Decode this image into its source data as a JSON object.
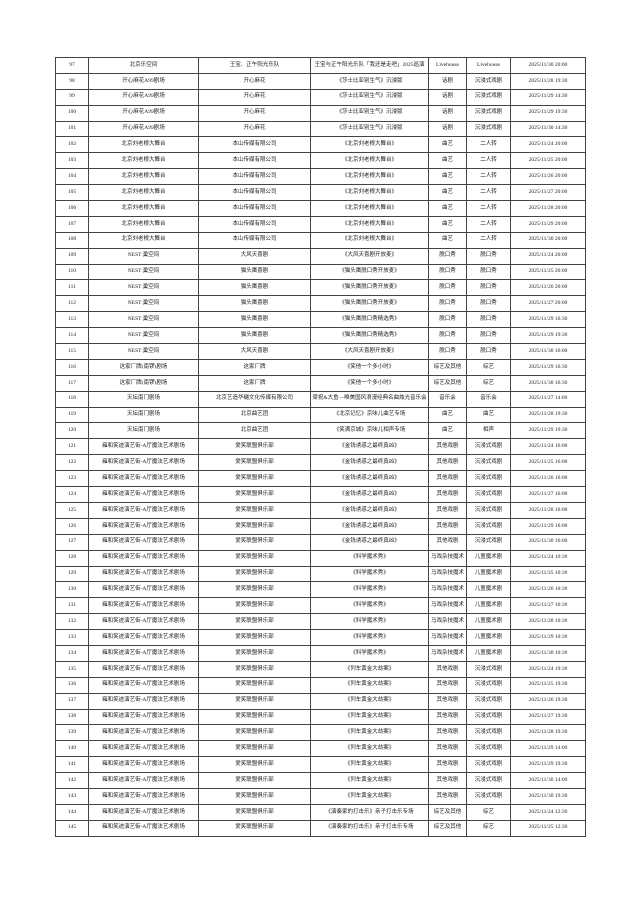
{
  "page": {
    "background_color": "#ffffff",
    "border_color": "#444444",
    "text_color": "#1a1a1a"
  },
  "table": {
    "rows": [
      [
        "97",
        "北京乐空间",
        "王宝、正午阳光乐队",
        "王宝与正午阳光乐队「我还是走吧」2025巡演",
        "Livehouse",
        "Livehouse",
        "2025/11/30 20:00"
      ],
      [
        "98",
        "开心麻花A99剧场",
        "开心麻花",
        "《莎士比亚别生气》沉浸版",
        "话剧",
        "沉浸式戏剧",
        "2025/11/28 19:30"
      ],
      [
        "99",
        "开心麻花A99剧场",
        "开心麻花",
        "《莎士比亚别生气》沉浸版",
        "话剧",
        "沉浸式戏剧",
        "2025/11/29 14:30"
      ],
      [
        "100",
        "开心麻花A99剧场",
        "开心麻花",
        "《莎士比亚别生气》沉浸版",
        "话剧",
        "沉浸式戏剧",
        "2025/11/29 19:30"
      ],
      [
        "101",
        "开心麻花A99剧场",
        "开心麻花",
        "《莎士比亚别生气》沉浸版",
        "话剧",
        "沉浸式戏剧",
        "2025/11/30 14:30"
      ],
      [
        "102",
        "北京刘老根大舞台",
        "本山传媒有限公司",
        "《北京刘老根大舞台》",
        "曲艺",
        "二人转",
        "2025/11/24 20:00"
      ],
      [
        "103",
        "北京刘老根大舞台",
        "本山传媒有限公司",
        "《北京刘老根大舞台》",
        "曲艺",
        "二人转",
        "2025/11/25 20:00"
      ],
      [
        "104",
        "北京刘老根大舞台",
        "本山传媒有限公司",
        "《北京刘老根大舞台》",
        "曲艺",
        "二人转",
        "2025/11/26 20:00"
      ],
      [
        "105",
        "北京刘老根大舞台",
        "本山传媒有限公司",
        "《北京刘老根大舞台》",
        "曲艺",
        "二人转",
        "2025/11/27 20:00"
      ],
      [
        "106",
        "北京刘老根大舞台",
        "本山传媒有限公司",
        "《北京刘老根大舞台》",
        "曲艺",
        "二人转",
        "2025/11/28 20:00"
      ],
      [
        "107",
        "北京刘老根大舞台",
        "本山传媒有限公司",
        "《北京刘老根大舞台》",
        "曲艺",
        "二人转",
        "2025/11/29 20:00"
      ],
      [
        "108",
        "北京刘老根大舞台",
        "本山传媒有限公司",
        "《北京刘老根大舞台》",
        "曲艺",
        "二人转",
        "2025/11/30 20:00"
      ],
      [
        "109",
        "NEST 巢空间",
        "大风天喜剧",
        "《大风天喜剧开放麦》",
        "脱口秀",
        "脱口秀",
        "2025/11/24 20:00"
      ],
      [
        "110",
        "NEST 巢空间",
        "猫头鹰喜剧",
        "《猫头鹰脱口秀开放麦》",
        "脱口秀",
        "脱口秀",
        "2025/11/25 20:00"
      ],
      [
        "111",
        "NEST 巢空间",
        "猫头鹰喜剧",
        "《猫头鹰脱口秀开放麦》",
        "脱口秀",
        "脱口秀",
        "2025/11/26 20:00"
      ],
      [
        "112",
        "NEST 巢空间",
        "猫头鹰喜剧",
        "《猫头鹰脱口秀开放麦》",
        "脱口秀",
        "脱口秀",
        "2025/11/27 20:00"
      ],
      [
        "113",
        "NEST 巢空间",
        "猫头鹰喜剧",
        "《猫头鹰脱口秀精选秀》",
        "脱口秀",
        "脱口秀",
        "2025/11/29 16:30"
      ],
      [
        "114",
        "NEST 巢空间",
        "猫头鹰喜剧",
        "《猫头鹰脱口秀精选秀》",
        "脱口秀",
        "脱口秀",
        "2025/11/29 19:30"
      ],
      [
        "115",
        "NEST 巢空间",
        "大风天喜剧",
        "《大风天喜剧开放麦》",
        "脱口秀",
        "脱口秀",
        "2025/11/30 16:00"
      ],
      [
        "116",
        "这家厂牌(南锣)剧场",
        "这家厂牌",
        "《笑他一个多小时》",
        "综艺及其他",
        "综艺",
        "2025/11/29 16:30"
      ],
      [
        "117",
        "这家厂牌(南锣)剧场",
        "这家厂牌",
        "《笑他一个多小时》",
        "综艺及其他",
        "综艺",
        "2025/11/30 16:30"
      ],
      [
        "118",
        "天坛南门剧场",
        "北京艺造华樾文化传媒有限公司",
        "梁祝&大鱼—唯美国风浪漫经典名曲烛光音乐会",
        "音乐会",
        "音乐会",
        "2025/11/27 14:00"
      ],
      [
        "119",
        "天坛南门剧场",
        "北京曲艺团",
        "《北京记忆》京味儿曲艺专场",
        "曲艺",
        "曲艺",
        "2025/11/28 19:30"
      ],
      [
        "120",
        "天坛南门剧场",
        "北京曲艺团",
        "《笑满京城》京味儿相声专场",
        "曲艺",
        "相声",
        "2025/11/29 19:30"
      ],
      [
        "121",
        "雍和笑迹演艺街-A厅魔法艺术剧场",
        "爱笑联盟俱乐部",
        "《金钱诱惑之最终真凶》",
        "其他戏剧",
        "沉浸式戏剧",
        "2025/11/24 16:00"
      ],
      [
        "122",
        "雍和笑迹演艺街-A厅魔法艺术剧场",
        "爱笑联盟俱乐部",
        "《金钱诱惑之最终真凶》",
        "其他戏剧",
        "沉浸式戏剧",
        "2025/11/25 16:00"
      ],
      [
        "123",
        "雍和笑迹演艺街-A厅魔法艺术剧场",
        "爱笑联盟俱乐部",
        "《金钱诱惑之最终真凶》",
        "其他戏剧",
        "沉浸式戏剧",
        "2025/11/26 16:00"
      ],
      [
        "124",
        "雍和笑迹演艺街-A厅魔法艺术剧场",
        "爱笑联盟俱乐部",
        "《金钱诱惑之最终真凶》",
        "其他戏剧",
        "沉浸式戏剧",
        "2025/11/27 16:00"
      ],
      [
        "125",
        "雍和笑迹演艺街-A厅魔法艺术剧场",
        "爱笑联盟俱乐部",
        "《金钱诱惑之最终真凶》",
        "其他戏剧",
        "沉浸式戏剧",
        "2025/11/28 16:00"
      ],
      [
        "126",
        "雍和笑迹演艺街-A厅魔法艺术剧场",
        "爱笑联盟俱乐部",
        "《金钱诱惑之最终真凶》",
        "其他戏剧",
        "沉浸式戏剧",
        "2025/11/29 16:00"
      ],
      [
        "127",
        "雍和笑迹演艺街-A厅魔法艺术剧场",
        "爱笑联盟俱乐部",
        "《金钱诱惑之最终真凶》",
        "其他戏剧",
        "沉浸式戏剧",
        "2025/11/30 16:00"
      ],
      [
        "128",
        "雍和笑迹演艺街-A厅魔法艺术剧场",
        "爱笑联盟俱乐部",
        "《科学魔术秀》",
        "马戏杂技魔术",
        "儿童魔术剧",
        "2025/11/24 10:30"
      ],
      [
        "129",
        "雍和笑迹演艺街-A厅魔法艺术剧场",
        "爱笑联盟俱乐部",
        "《科学魔术秀》",
        "马戏杂技魔术",
        "儿童魔术剧",
        "2025/11/25 10:30"
      ],
      [
        "130",
        "雍和笑迹演艺街-A厅魔法艺术剧场",
        "爱笑联盟俱乐部",
        "《科学魔术秀》",
        "马戏杂技魔术",
        "儿童魔术剧",
        "2025/11/26 10:30"
      ],
      [
        "131",
        "雍和笑迹演艺街-A厅魔法艺术剧场",
        "爱笑联盟俱乐部",
        "《科学魔术秀》",
        "马戏杂技魔术",
        "儿童魔术剧",
        "2025/11/27 10:30"
      ],
      [
        "132",
        "雍和笑迹演艺街-A厅魔法艺术剧场",
        "爱笑联盟俱乐部",
        "《科学魔术秀》",
        "马戏杂技魔术",
        "儿童魔术剧",
        "2025/11/28 10:30"
      ],
      [
        "133",
        "雍和笑迹演艺街-A厅魔法艺术剧场",
        "爱笑联盟俱乐部",
        "《科学魔术秀》",
        "马戏杂技魔术",
        "儿童魔术剧",
        "2025/11/29 10:30"
      ],
      [
        "134",
        "雍和笑迹演艺街-A厅魔法艺术剧场",
        "爱笑联盟俱乐部",
        "《科学魔术秀》",
        "马戏杂技魔术",
        "儿童魔术剧",
        "2025/11/30 10:30"
      ],
      [
        "135",
        "雍和笑迹演艺街-A厅魔法艺术剧场",
        "爱笑联盟俱乐部",
        "《列车黄金大劫案》",
        "其他戏剧",
        "沉浸式戏剧",
        "2025/11/24 19:30"
      ],
      [
        "136",
        "雍和笑迹演艺街-A厅魔法艺术剧场",
        "爱笑联盟俱乐部",
        "《列车黄金大劫案》",
        "其他戏剧",
        "沉浸式戏剧",
        "2025/11/25 19:30"
      ],
      [
        "137",
        "雍和笑迹演艺街-A厅魔法艺术剧场",
        "爱笑联盟俱乐部",
        "《列车黄金大劫案》",
        "其他戏剧",
        "沉浸式戏剧",
        "2025/11/26 19:30"
      ],
      [
        "138",
        "雍和笑迹演艺街-A厅魔法艺术剧场",
        "爱笑联盟俱乐部",
        "《列车黄金大劫案》",
        "其他戏剧",
        "沉浸式戏剧",
        "2025/11/27 19:30"
      ],
      [
        "139",
        "雍和笑迹演艺街-A厅魔法艺术剧场",
        "爱笑联盟俱乐部",
        "《列车黄金大劫案》",
        "其他戏剧",
        "沉浸式戏剧",
        "2025/11/28 19:30"
      ],
      [
        "140",
        "雍和笑迹演艺街-A厅魔法艺术剧场",
        "爱笑联盟俱乐部",
        "《列车黄金大劫案》",
        "其他戏剧",
        "沉浸式戏剧",
        "2025/11/29 14:00"
      ],
      [
        "141",
        "雍和笑迹演艺街-A厅魔法艺术剧场",
        "爱笑联盟俱乐部",
        "《列车黄金大劫案》",
        "其他戏剧",
        "沉浸式戏剧",
        "2025/11/29 19:30"
      ],
      [
        "142",
        "雍和笑迹演艺街-A厅魔法艺术剧场",
        "爱笑联盟俱乐部",
        "《列车黄金大劫案》",
        "其他戏剧",
        "沉浸式戏剧",
        "2025/11/30 14:00"
      ],
      [
        "143",
        "雍和笑迹演艺街-A厅魔法艺术剧场",
        "爱笑联盟俱乐部",
        "《列车黄金大劫案》",
        "其他戏剧",
        "沉浸式戏剧",
        "2025/11/30 19:30"
      ],
      [
        "144",
        "雍和笑迹演艺街-A厅魔法艺术剧场",
        "爱笑联盟俱乐部",
        "《演奏家的打击乐》亲子打击乐专场",
        "综艺及其他",
        "综艺",
        "2025/11/24 12:30"
      ],
      [
        "145",
        "雍和笑迹演艺街-A厅魔法艺术剧场",
        "爱笑联盟俱乐部",
        "《演奏家的打击乐》亲子打击乐专场",
        "综艺及其他",
        "综艺",
        "2025/11/25 12:30"
      ]
    ]
  }
}
